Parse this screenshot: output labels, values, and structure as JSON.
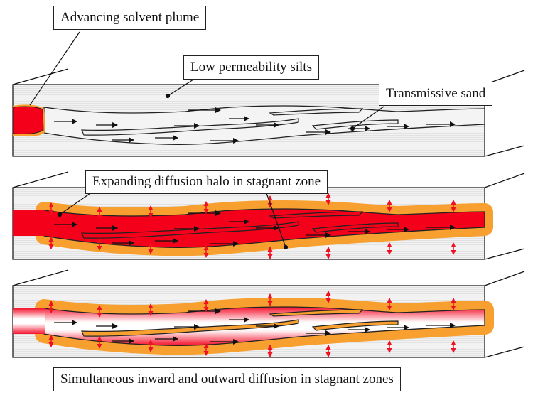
{
  "labels": {
    "plume": "Advancing solvent plume",
    "silts": "Low permeability silts",
    "sand": "Transmissive sand",
    "halo": "Expanding diffusion halo in stagnant zone",
    "bottom": "Simultaneous inward and outward diffusion in stagnant zones"
  },
  "colors": {
    "plume_red": "#f5001a",
    "halo_orange": "#f7a030",
    "silt_gray": "#ededed",
    "arrow_red": "#ee1122"
  }
}
